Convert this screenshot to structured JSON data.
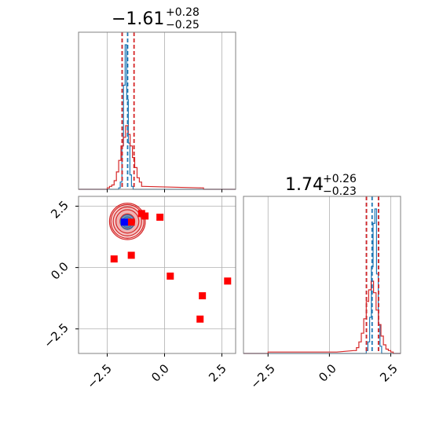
{
  "chart_data": [
    {
      "panel": "marginal-x",
      "type": "histogram",
      "title": {
        "value": "−1.61",
        "plus": "+0.28",
        "minus": "−0.25"
      },
      "xlim": [
        -3.75,
        3.1
      ],
      "x_ticks": [
        -2.5,
        0.0,
        2.5
      ],
      "grid": true,
      "series": [
        {
          "color": "#1f77b4",
          "bins": [
            [
              -2.0,
              -1.93,
              0.01
            ],
            [
              -1.93,
              -1.86,
              0.05
            ],
            [
              -1.86,
              -1.79,
              0.3
            ],
            [
              -1.79,
              -1.72,
              0.72
            ],
            [
              -1.72,
              -1.65,
              1.0
            ],
            [
              -1.65,
              -1.58,
              0.62
            ],
            [
              -1.58,
              -1.51,
              0.32
            ],
            [
              -1.51,
              -1.44,
              0.1
            ],
            [
              -1.44,
              -1.37,
              0.02
            ]
          ]
        },
        {
          "color": "#d62728",
          "bins": [
            [
              -2.5,
              -2.4,
              0.01
            ],
            [
              -2.4,
              -2.3,
              0.02
            ],
            [
              -2.3,
              -2.2,
              0.03
            ],
            [
              -2.2,
              -2.1,
              0.06
            ],
            [
              -2.1,
              -2.0,
              0.12
            ],
            [
              -2.0,
              -1.9,
              0.2
            ],
            [
              -1.9,
              -1.8,
              0.3
            ],
            [
              -1.8,
              -1.7,
              0.36
            ],
            [
              -1.7,
              -1.6,
              0.44
            ],
            [
              -1.6,
              -1.5,
              0.38
            ],
            [
              -1.5,
              -1.4,
              0.3
            ],
            [
              -1.4,
              -1.3,
              0.22
            ],
            [
              -1.3,
              -1.2,
              0.15
            ],
            [
              -1.2,
              -1.1,
              0.08
            ],
            [
              -1.1,
              -1.0,
              0.05
            ],
            [
              -1.0,
              -0.9,
              0.02
            ],
            [
              1.6,
              1.7,
              0.01
            ]
          ]
        }
      ],
      "vlines": [
        {
          "x": -1.85,
          "color": "#1f77b4",
          "style": "dashed"
        },
        {
          "x": -1.61,
          "color": "#1f77b4",
          "style": "dashed"
        },
        {
          "x": -1.85,
          "color": "#d62728",
          "style": "dashed"
        },
        {
          "x": -1.33,
          "color": "#d62728",
          "style": "dashed"
        }
      ]
    },
    {
      "panel": "joint",
      "type": "scatter",
      "xlim": [
        -3.75,
        3.1
      ],
      "ylim": [
        -3.5,
        2.9
      ],
      "x_ticks": [
        -2.5,
        0.0,
        2.5
      ],
      "y_ticks": [
        -2.5,
        0.0,
        2.5
      ],
      "grid": true,
      "contours": [
        {
          "color": "#d62728",
          "center": [
            -1.62,
            1.88
          ],
          "levels": [
            0.32,
            0.5,
            0.62,
            0.72,
            0.78
          ]
        },
        {
          "color": "#1f77b4",
          "center": [
            -1.62,
            1.85
          ],
          "levels": [
            0.12,
            0.22,
            0.3
          ]
        }
      ],
      "markers_red": [
        {
          "x": -1.0,
          "y": 2.2
        },
        {
          "x": -0.85,
          "y": 2.1
        },
        {
          "x": -0.2,
          "y": 2.05
        },
        {
          "x": -1.45,
          "y": 1.85
        },
        {
          "x": -2.2,
          "y": 0.35
        },
        {
          "x": -1.45,
          "y": 0.5
        },
        {
          "x": 0.25,
          "y": -0.35
        },
        {
          "x": 2.75,
          "y": -0.55
        },
        {
          "x": 1.65,
          "y": -1.15
        },
        {
          "x": 1.55,
          "y": -2.1
        }
      ],
      "marker_blue": {
        "x": -1.75,
        "y": 1.85
      }
    },
    {
      "panel": "marginal-y",
      "type": "histogram",
      "title": {
        "value": "1.74",
        "plus": "+0.26",
        "minus": "−0.23"
      },
      "xlim": [
        -3.5,
        2.9
      ],
      "x_ticks": [
        -2.5,
        0.0,
        2.5
      ],
      "grid": true,
      "series": [
        {
          "color": "#1f77b4",
          "bins": [
            [
              1.5,
              1.57,
              0.02
            ],
            [
              1.57,
              1.64,
              0.08
            ],
            [
              1.64,
              1.71,
              0.25
            ],
            [
              1.71,
              1.78,
              0.6
            ],
            [
              1.78,
              1.85,
              0.9
            ],
            [
              1.85,
              1.92,
              1.0
            ],
            [
              1.92,
              1.99,
              0.55
            ],
            [
              1.99,
              2.06,
              0.2
            ],
            [
              2.06,
              2.13,
              0.05
            ]
          ]
        },
        {
          "color": "#d62728",
          "bins": [
            [
              -2.5,
              -2.4,
              0.01
            ],
            [
              0.2,
              0.3,
              0.01
            ],
            [
              1.0,
              1.1,
              0.02
            ],
            [
              1.1,
              1.2,
              0.04
            ],
            [
              1.2,
              1.3,
              0.08
            ],
            [
              1.3,
              1.4,
              0.14
            ],
            [
              1.4,
              1.5,
              0.24
            ],
            [
              1.5,
              1.6,
              0.36
            ],
            [
              1.6,
              1.7,
              0.44
            ],
            [
              1.7,
              1.8,
              0.5
            ],
            [
              1.8,
              1.9,
              0.42
            ],
            [
              1.9,
              2.0,
              0.3
            ],
            [
              2.0,
              2.1,
              0.2
            ],
            [
              2.1,
              2.2,
              0.12
            ],
            [
              2.2,
              2.3,
              0.06
            ],
            [
              2.3,
              2.4,
              0.03
            ],
            [
              2.4,
              2.5,
              0.02
            ],
            [
              2.5,
              2.6,
              0.01
            ]
          ]
        }
      ],
      "vlines": [
        {
          "x": 1.51,
          "color": "#1f77b4",
          "style": "dashed"
        },
        {
          "x": 1.74,
          "color": "#1f77b4",
          "style": "dashed"
        },
        {
          "x": 2.0,
          "color": "#1f77b4",
          "style": "dashed"
        },
        {
          "x": 1.51,
          "color": "#d62728",
          "style": "dashed"
        },
        {
          "x": 2.0,
          "color": "#d62728",
          "style": "dashed"
        }
      ]
    }
  ],
  "colors": {
    "blue": "#1f77b4",
    "red": "#d62728",
    "marker_red": "#ff0000",
    "marker_blue": "#0000ff",
    "grid": "#b0b0b0",
    "frame": "#808080"
  }
}
